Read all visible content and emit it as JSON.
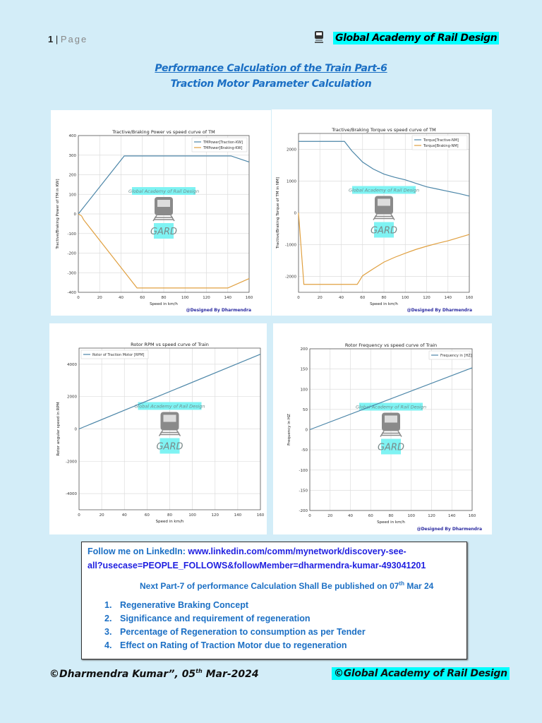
{
  "header": {
    "page_number": "1",
    "page_separator": "|",
    "page_label": "Page",
    "brand": "Global Academy of Rail Design",
    "brand_icon": "train-icon"
  },
  "title": {
    "line1": "Performance Calculation of the Train Part-6",
    "line2": "Traction Motor Parameter Calculation"
  },
  "watermark": {
    "text": "Global Academy of Rail Design",
    "logo": "GARD"
  },
  "chart_credit": "@Designed By Dharmendra",
  "chart_data": [
    {
      "type": "line",
      "title": "Tractive/Braking Power  vs speed curve of TM",
      "xlabel": "Speed in km/h",
      "ylabel": "Tractive/Braking Power of TM in  KW]",
      "xlim": [
        0,
        160
      ],
      "ylim": [
        -400,
        400
      ],
      "xticks": [
        0,
        20,
        40,
        60,
        80,
        100,
        120,
        140,
        160
      ],
      "yticks": [
        -400,
        -300,
        -200,
        -100,
        0,
        100,
        200,
        300,
        400
      ],
      "grid": true,
      "legend": "top-right",
      "series": [
        {
          "name": "TMPower[Traction-KW]",
          "color": "#4c86a8",
          "x": [
            0,
            43,
            143,
            160
          ],
          "y": [
            0,
            296,
            296,
            265
          ]
        },
        {
          "name": "TMPower[Braking-KW]",
          "color": "#e0a040",
          "x": [
            0,
            3,
            5,
            55,
            140,
            160
          ],
          "y": [
            0,
            -10,
            -30,
            -378,
            -378,
            -330
          ]
        }
      ]
    },
    {
      "type": "line",
      "title": "Tractive/Braking Torque vs speed curve of TM",
      "xlabel": "Speed in km/h",
      "ylabel": "Tractive/Braking Torque of TM in  NM]",
      "xlim": [
        0,
        160
      ],
      "ylim": [
        -2500,
        2500
      ],
      "xticks": [
        0,
        20,
        40,
        60,
        80,
        100,
        120,
        140,
        160
      ],
      "yticks": [
        -2000,
        -1000,
        0,
        1000,
        2000
      ],
      "grid": true,
      "legend": "top-right",
      "series": [
        {
          "name": "Torque[Tractive-NM]",
          "color": "#4c86a8",
          "x": [
            0,
            43,
            50,
            60,
            70,
            80,
            90,
            100,
            110,
            120,
            130,
            140,
            150,
            160
          ],
          "y": [
            2250,
            2250,
            1950,
            1600,
            1380,
            1220,
            1120,
            1040,
            930,
            820,
            750,
            680,
            610,
            530
          ]
        },
        {
          "name": "Torque[Braking-NM]",
          "color": "#e0a040",
          "x": [
            0,
            5,
            55,
            60,
            70,
            80,
            90,
            100,
            110,
            120,
            130,
            140,
            150,
            160
          ],
          "y": [
            0,
            -2250,
            -2250,
            -1980,
            -1760,
            -1550,
            -1400,
            -1270,
            -1150,
            -1050,
            -960,
            -880,
            -780,
            -680
          ]
        }
      ]
    },
    {
      "type": "line",
      "title": "Rotor RPM vs speed curve of Train",
      "xlabel": "Speed in km/h",
      "ylabel": "Rotor angular speed  in RPM",
      "xlim": [
        0,
        160
      ],
      "ylim": [
        -5000,
        5000
      ],
      "xticks": [
        0,
        20,
        40,
        60,
        80,
        100,
        120,
        140,
        160
      ],
      "yticks": [
        -4000,
        -2000,
        0,
        2000,
        4000
      ],
      "grid": true,
      "legend": "top-left",
      "series": [
        {
          "name": "Rotor of Traction Motor [RPM]",
          "color": "#4c86a8",
          "x": [
            0,
            160
          ],
          "y": [
            0,
            4620
          ]
        }
      ]
    },
    {
      "type": "line",
      "title": "Rotor Frequency vs speed curve of Train",
      "xlabel": "Speed in km/h",
      "ylabel": "Frequency in HZ",
      "xlim": [
        0,
        160
      ],
      "ylim": [
        -200,
        200
      ],
      "xticks": [
        0,
        20,
        40,
        60,
        80,
        100,
        120,
        140,
        160
      ],
      "yticks": [
        -200,
        -150,
        -100,
        -50,
        0,
        50,
        100,
        150,
        200
      ],
      "grid": true,
      "legend": "top-right",
      "series": [
        {
          "name": "Frequency in [HZ]",
          "color": "#4c86a8",
          "x": [
            0,
            160
          ],
          "y": [
            0,
            153
          ]
        }
      ]
    }
  ],
  "info": {
    "follow_label": "Follow me on LinkedIn: ",
    "link_line1": "www.linkedin.com/comm/mynetwork/discovery-see-",
    "link_line2": "all?usecase=PEOPLE_FOLLOWS&followMember=dharmendra-kumar-493041201",
    "next_part_prefix": "Next Part-7 of performance Calculation Shall Be published on 07",
    "next_part_sup": "th",
    "next_part_suffix": " Mar 24",
    "topics": [
      {
        "num": "1.",
        "text": "Regenerative Braking Concept"
      },
      {
        "num": "2.",
        "text": "Significance and requirement of regeneration"
      },
      {
        "num": "3.",
        "text": "Percentage of Regeneration to consumption as per Tender"
      },
      {
        "num": "4.",
        "text": "Effect on Rating of Traction Motor due to regeneration"
      }
    ]
  },
  "footer": {
    "author_prefix": "©Dharmendra Kumar”, 05",
    "author_sup": "th",
    "author_suffix": " Mar-2024",
    "brand": "©Global Academy of Rail Design"
  },
  "colors": {
    "page_bg": "#d3edf8",
    "title": "#1b6fc4",
    "highlight": "#00ffff",
    "link": "#1f1fe0"
  }
}
